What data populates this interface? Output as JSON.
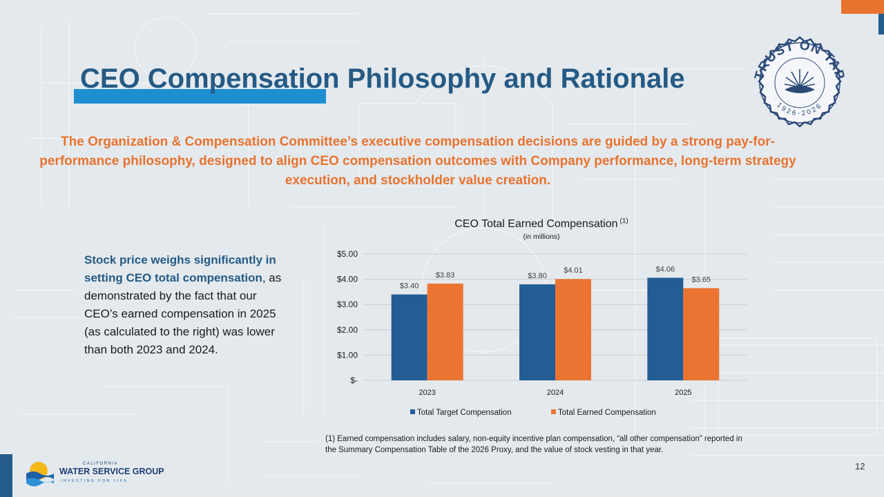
{
  "slide": {
    "title": "CEO Compensation Philosophy and Rationale",
    "intro": "The Organization & Compensation Committee’s executive compensation decisions are guided by a strong pay-for-performance philosophy, designed to align CEO compensation outcomes with Company performance, long-term strategy execution, and stockholder value creation.",
    "side_highlight": "Stock price weighs significantly in setting CEO total compensation",
    "side_rest": ", as demonstrated by the fact that our CEO’s earned compensation in 2025 (as calculated to the right) was lower than both 2023 and 2024.",
    "footnote": "(1)  Earned compensation includes salary, non-equity incentive plan compensation, “all other compensation” reported in the Summary Compensation Table of the 2026 Proxy, and the value of stock vesting in that year.",
    "page_number": "12",
    "seal": {
      "top_text": "TRUST ON TAP",
      "bottom_text": "1926-2026"
    },
    "logo": {
      "line1": "CALIFORNIA",
      "line2": "WATER SERVICE GROUP",
      "line3": "INVESTING FOR LIFE"
    }
  },
  "colors": {
    "title": "#245a83",
    "accent_orange": "#e8732f",
    "title_bar": "#1d8fd1",
    "series_target": "#235d96",
    "series_earned": "#ec7433"
  },
  "chart_data": {
    "type": "bar",
    "title": "CEO Total Earned Compensation",
    "title_superscript": "(1)",
    "subtitle": "(in millions)",
    "categories": [
      "2023",
      "2024",
      "2025"
    ],
    "series": [
      {
        "name": "Total Target Compensation",
        "values": [
          3.4,
          3.8,
          4.06
        ],
        "labels": [
          "$3.40",
          "$3.80",
          "$4.06"
        ]
      },
      {
        "name": "Total Earned Compensation",
        "values": [
          3.83,
          4.01,
          3.65
        ],
        "labels": [
          "$3.83",
          "$4.01",
          "$3.65"
        ]
      }
    ],
    "ylim": [
      0,
      5
    ],
    "yticks": [
      {
        "value": 0,
        "label": "$-"
      },
      {
        "value": 1,
        "label": "$1.00"
      },
      {
        "value": 2,
        "label": "$2.00"
      },
      {
        "value": 3,
        "label": "$3.00"
      },
      {
        "value": 4,
        "label": "$4.00"
      },
      {
        "value": 5,
        "label": "$5.00"
      }
    ],
    "grid": true,
    "legend": "bottom"
  }
}
